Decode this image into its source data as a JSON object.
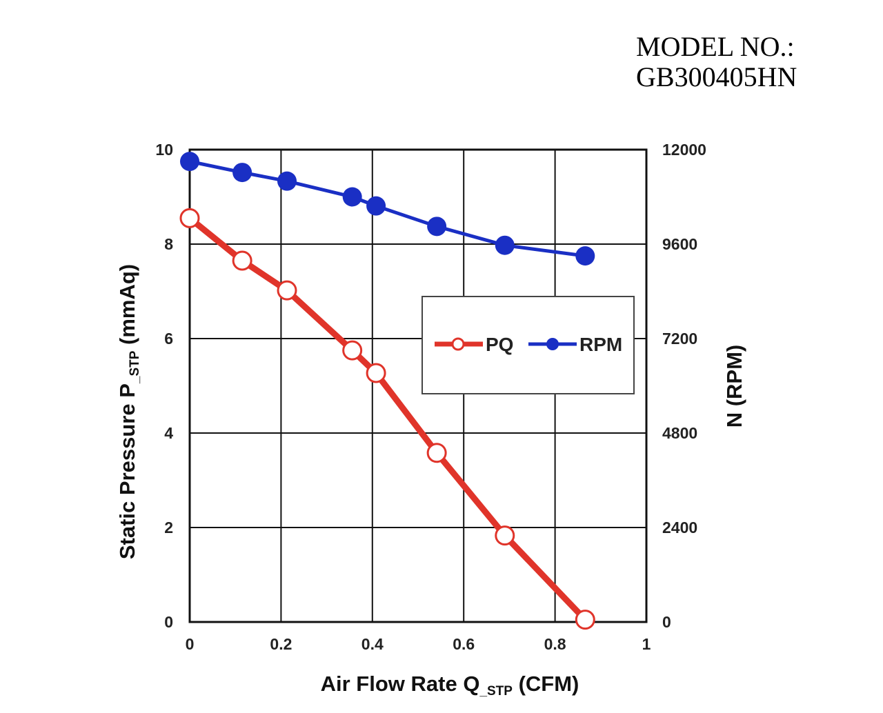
{
  "model": {
    "label": "MODEL NO.:",
    "number": "GB300405HN"
  },
  "chart_data": {
    "type": "line",
    "xlabel_main": "Air Flow Rate Q",
    "xlabel_sub": "_STP",
    "xlabel_unit": " (CFM)",
    "ylabel_main": "Static Pressure P",
    "ylabel_sub": "_STP",
    "ylabel_unit": " (mmAq)",
    "y2label": "N (RPM)",
    "xlim": [
      0,
      1
    ],
    "ylim": [
      0,
      10
    ],
    "y2lim": [
      0,
      12000
    ],
    "x_ticks": [
      "0",
      "0.2",
      "0.4",
      "0.6",
      "0.8",
      "1"
    ],
    "x_tick_values": [
      0,
      0.2,
      0.4,
      0.6,
      0.8,
      1
    ],
    "y_ticks": [
      "0",
      "2",
      "4",
      "6",
      "8",
      "10"
    ],
    "y_tick_values": [
      0,
      2,
      4,
      6,
      8,
      10
    ],
    "y2_ticks": [
      "0",
      "2400",
      "4800",
      "7200",
      "9600",
      "12000"
    ],
    "y2_tick_values": [
      0,
      2400,
      4800,
      7200,
      9600,
      12000
    ],
    "grid": true,
    "legend_position": "middle-right",
    "series": [
      {
        "name": "PQ",
        "axis": "left",
        "color": "#e0342a",
        "marker": "open-circle",
        "x": [
          0,
          0.115,
          0.213,
          0.356,
          0.408,
          0.541,
          0.69,
          0.866
        ],
        "y": [
          8.55,
          7.65,
          7.02,
          5.75,
          5.27,
          3.58,
          1.83,
          0.05
        ]
      },
      {
        "name": "RPM",
        "axis": "right",
        "color": "#1a2fc4",
        "marker": "filled-circle",
        "x": [
          0,
          0.115,
          0.213,
          0.356,
          0.408,
          0.541,
          0.69,
          0.866
        ],
        "y": [
          11700,
          11420,
          11200,
          10800,
          10570,
          10050,
          9570,
          9300
        ]
      }
    ]
  }
}
